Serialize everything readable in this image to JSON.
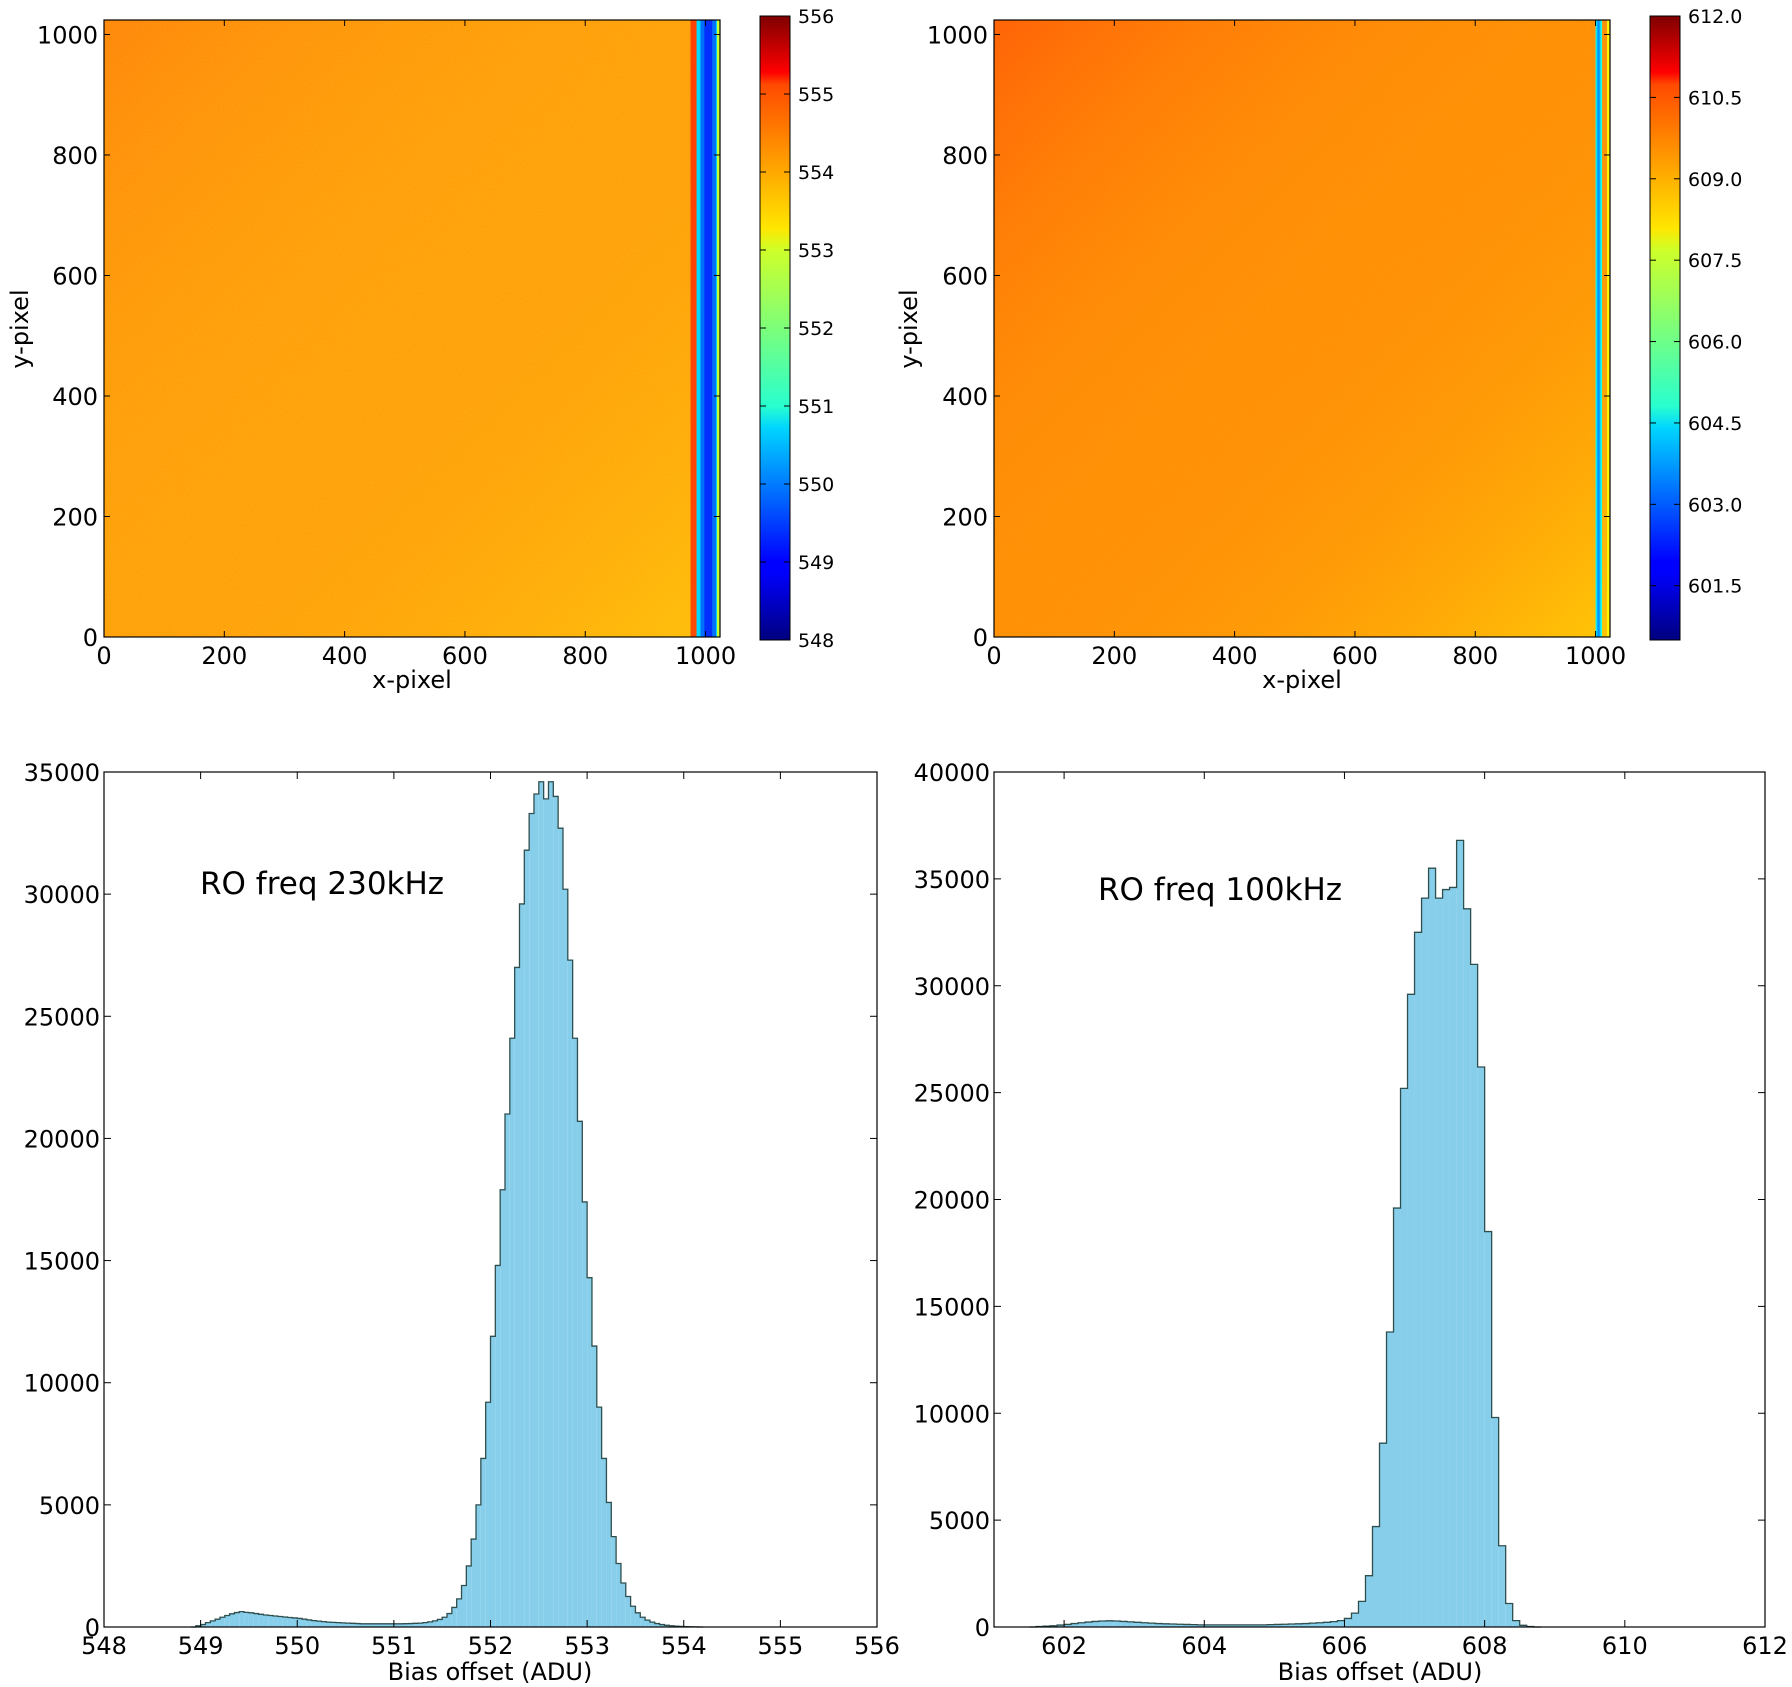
{
  "chart_data": [
    {
      "type": "heatmap",
      "panel": "top-left",
      "title": "",
      "xlabel": "x-pixel",
      "ylabel": "y-pixel",
      "xlim": [
        0,
        1024
      ],
      "ylim": [
        0,
        1024
      ],
      "x_ticks": [
        "0",
        "200",
        "400",
        "600",
        "800",
        "1000"
      ],
      "y_ticks": [
        "0",
        "200",
        "400",
        "600",
        "800",
        "1000"
      ],
      "colorbar": {
        "range": [
          548,
          556
        ],
        "ticks": [
          "548",
          "549",
          "550",
          "551",
          "552",
          "553",
          "554",
          "555",
          "556"
        ],
        "colormap": "jet"
      },
      "field": {
        "base_value": 553.8,
        "gradient": "slightly warmer toward upper-left",
        "bright_column_x": [
          975,
          990
        ],
        "bright_column_value": 554.8,
        "overscan_x": [
          985,
          1024
        ],
        "overscan_value": 549.8
      }
    },
    {
      "type": "heatmap",
      "panel": "top-right",
      "title": "",
      "xlabel": "x-pixel",
      "ylabel": "y-pixel",
      "xlim": [
        0,
        1024
      ],
      "ylim": [
        0,
        1024
      ],
      "x_ticks": [
        "0",
        "200",
        "400",
        "600",
        "800",
        "1000"
      ],
      "y_ticks": [
        "0",
        "200",
        "400",
        "600",
        "800",
        "1000"
      ],
      "colorbar": {
        "range": [
          600.5,
          612.0
        ],
        "ticks": [
          "601.5",
          "603.0",
          "604.5",
          "606.0",
          "607.5",
          "609.0",
          "610.5",
          "612.0"
        ],
        "colormap": "jet"
      },
      "field": {
        "base_value": 609.0,
        "gradient": "warmer top-left (~609.6), cooler bottom-right (~608.3)",
        "overscan_x": [
          1000,
          1010
        ],
        "overscan_value": 604.5
      }
    },
    {
      "type": "bar",
      "subtype": "histogram",
      "panel": "bottom-left",
      "annotation": "RO freq 230kHz",
      "xlabel": "Bias offset (ADU)",
      "ylabel": "",
      "xlim": [
        548,
        556
      ],
      "ylim": [
        0,
        35000
      ],
      "x_ticks": [
        "548",
        "549",
        "550",
        "551",
        "552",
        "553",
        "554",
        "555",
        "556"
      ],
      "y_ticks": [
        "0",
        "5000",
        "10000",
        "15000",
        "20000",
        "25000",
        "30000",
        "35000"
      ],
      "bin_width": 0.05,
      "bin_edges_start": 548.9,
      "fill_color": "#87ceeb",
      "edge_color": "#2f4f4f",
      "counts": [
        0,
        50,
        100,
        180,
        250,
        320,
        400,
        470,
        540,
        590,
        630,
        600,
        580,
        550,
        520,
        490,
        470,
        450,
        430,
        410,
        390,
        370,
        350,
        320,
        290,
        260,
        240,
        220,
        200,
        190,
        180,
        170,
        160,
        150,
        140,
        130,
        130,
        130,
        130,
        130,
        130,
        130,
        130,
        130,
        135,
        140,
        150,
        160,
        180,
        210,
        250,
        310,
        400,
        550,
        800,
        1150,
        1700,
        2500,
        3600,
        5000,
        6900,
        9200,
        11900,
        14800,
        17900,
        21000,
        24100,
        27000,
        29600,
        31800,
        33300,
        34100,
        34600,
        33900,
        34600,
        34000,
        32700,
        30200,
        27300,
        24100,
        20700,
        17400,
        14300,
        11500,
        9000,
        6900,
        5100,
        3700,
        2600,
        1800,
        1250,
        850,
        580,
        400,
        280,
        200,
        140,
        100,
        70,
        50,
        35,
        25,
        15,
        10,
        5,
        0
      ]
    },
    {
      "type": "bar",
      "subtype": "histogram",
      "panel": "bottom-right",
      "annotation": "RO freq 100kHz",
      "xlabel": "Bias offset (ADU)",
      "ylabel": "",
      "xlim": [
        601,
        612
      ],
      "ylim": [
        0,
        40000
      ],
      "x_ticks": [
        "602",
        "604",
        "606",
        "608",
        "610",
        "612"
      ],
      "y_ticks": [
        "0",
        "5000",
        "10000",
        "15000",
        "20000",
        "25000",
        "30000",
        "35000",
        "40000"
      ],
      "bin_width": 0.1,
      "bin_edges_start": 601.5,
      "fill_color": "#87ceeb",
      "edge_color": "#2f4f4f",
      "counts": [
        0,
        20,
        40,
        60,
        90,
        120,
        160,
        200,
        230,
        260,
        280,
        290,
        280,
        260,
        240,
        220,
        200,
        180,
        160,
        150,
        140,
        130,
        120,
        110,
        100,
        100,
        100,
        100,
        100,
        100,
        100,
        100,
        100,
        100,
        110,
        120,
        130,
        140,
        150,
        160,
        180,
        200,
        220,
        250,
        300,
        400,
        650,
        1200,
        2400,
        4700,
        8600,
        13800,
        19600,
        25200,
        29600,
        32500,
        34100,
        35500,
        34100,
        34500,
        34600,
        36800,
        33600,
        31000,
        26200,
        18500,
        9800,
        3800,
        1100,
        300,
        80,
        20,
        0
      ]
    }
  ]
}
